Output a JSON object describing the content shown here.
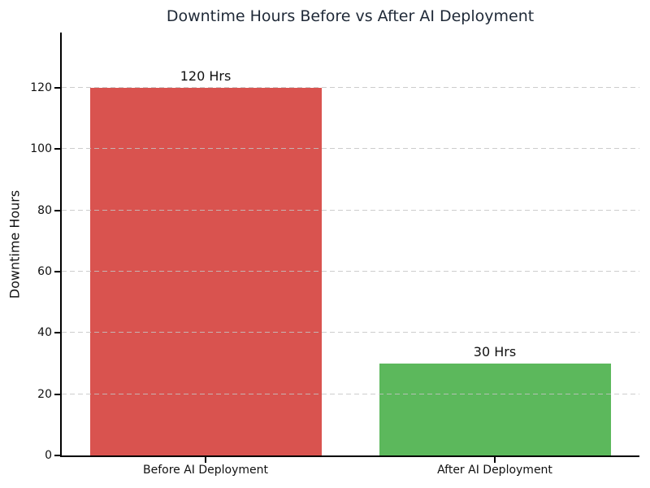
{
  "chart_data": {
    "type": "bar",
    "title": "Downtime Hours Before vs After AI Deployment",
    "xlabel": "",
    "ylabel": "Downtime Hours",
    "categories": [
      "Before AI Deployment",
      "After AI Deployment"
    ],
    "values": [
      120,
      30
    ],
    "bar_labels": [
      "120 Hrs",
      "30 Hrs"
    ],
    "bar_colors": [
      "#d9534f",
      "#5cb85c"
    ],
    "ylim": [
      0,
      138
    ],
    "yticks": [
      0,
      20,
      40,
      60,
      80,
      100,
      120
    ],
    "grid": "horizontal-dashed-over-bars",
    "legend": "none",
    "background_color": "#ffffff",
    "title_color": "#1f2937",
    "grid_color": "#c4c4c4",
    "axis_color": "#000000"
  }
}
